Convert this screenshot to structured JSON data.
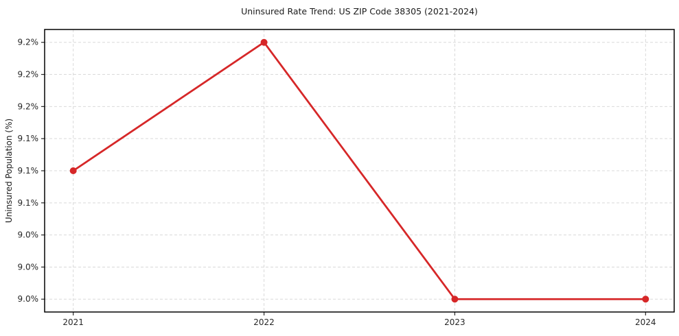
{
  "figure": {
    "background": "#ffffff"
  },
  "chart_data": {
    "type": "line",
    "title": "Uninsured Rate Trend: US ZIP Code 38305 (2021-2024)",
    "xlabel": "",
    "ylabel": "Uninsured Population (%)",
    "x": [
      2021,
      2022,
      2023,
      2024
    ],
    "series": [
      {
        "color": "#d62728",
        "values": [
          9.1,
          9.2,
          9.0,
          9.0
        ]
      }
    ],
    "xlim": [
      2020.85,
      2024.15
    ],
    "ylim": [
      8.99,
      9.21
    ],
    "xticks": {
      "values": [
        2021,
        2022,
        2023,
        2024
      ],
      "labels": [
        "2021",
        "2022",
        "2023",
        "2024"
      ]
    },
    "yticks": {
      "values": [
        9.0,
        9.025,
        9.05,
        9.075,
        9.1,
        9.125,
        9.15,
        9.175,
        9.2
      ],
      "labels": [
        "9.0%",
        "9.0%",
        "9.0%",
        "9.1%",
        "9.1%",
        "9.1%",
        "9.2%",
        "9.2%",
        "9.2%"
      ]
    },
    "grid": true,
    "grid_color": "#d9d9d9",
    "grid_dash": "4 3",
    "spine_color": "#000000",
    "tick_mark_color": "#262626",
    "marker": "circle",
    "marker_radius": 5,
    "line_width": 2.8,
    "legend_position": "none"
  }
}
